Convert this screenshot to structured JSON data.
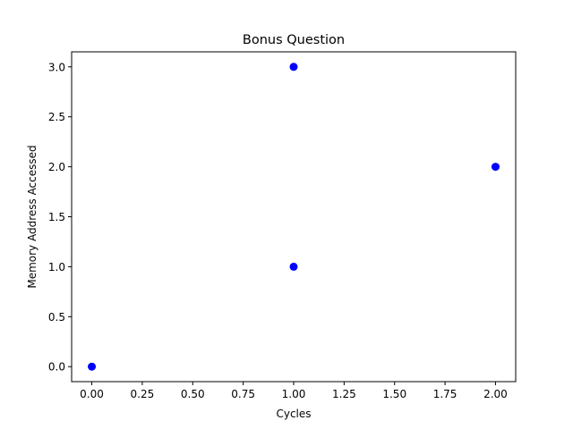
{
  "chart_data": {
    "type": "scatter",
    "title": "Bonus Question",
    "xlabel": "Cycles",
    "ylabel": "Memory Address Accessed",
    "points": [
      {
        "x": 0,
        "y": 0
      },
      {
        "x": 1,
        "y": 1
      },
      {
        "x": 1,
        "y": 3
      },
      {
        "x": 2,
        "y": 2
      }
    ],
    "xlim": [
      -0.1,
      2.1
    ],
    "ylim": [
      -0.15,
      3.15
    ],
    "xticks": [
      0.0,
      0.25,
      0.5,
      0.75,
      1.0,
      1.25,
      1.5,
      1.75,
      2.0
    ],
    "xtick_labels": [
      "0.00",
      "0.25",
      "0.50",
      "0.75",
      "1.00",
      "1.25",
      "1.50",
      "1.75",
      "2.00"
    ],
    "yticks": [
      0.0,
      0.5,
      1.0,
      1.5,
      2.0,
      2.5,
      3.0
    ],
    "ytick_labels": [
      "0.0",
      "0.5",
      "1.0",
      "1.5",
      "2.0",
      "2.5",
      "3.0"
    ],
    "grid": false,
    "marker_color": "#0000ff"
  }
}
